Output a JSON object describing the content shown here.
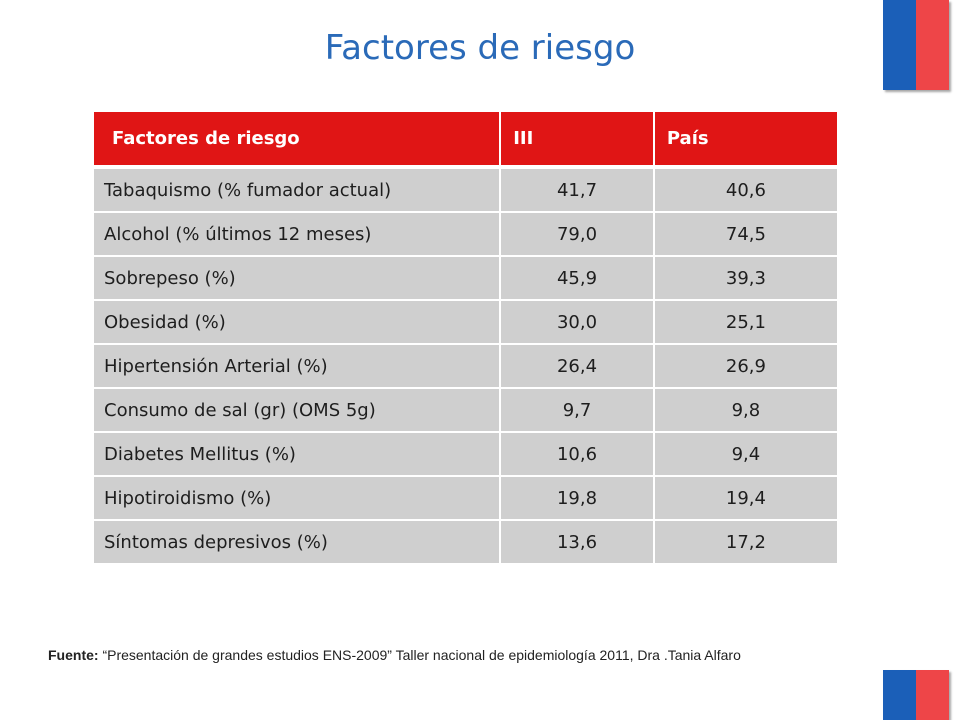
{
  "title": "Factores de riesgo",
  "table": {
    "headers": [
      "Factores de riesgo",
      "III",
      "País"
    ],
    "rows": [
      [
        "Tabaquismo (% fumador  actual)",
        "41,7",
        "40,6"
      ],
      [
        "Alcohol (% últimos 12 meses)",
        "79,0",
        "74,5"
      ],
      [
        "Sobrepeso (%)",
        "45,9",
        "39,3"
      ],
      [
        "Obesidad (%)",
        "30,0",
        "25,1"
      ],
      [
        "Hipertensión Arterial (%)",
        "26,4",
        "26,9"
      ],
      [
        "Consumo de sal (gr) (OMS 5g)",
        "9,7",
        "9,8"
      ],
      [
        "Diabetes Mellitus  (%)",
        "10,6",
        "9,4"
      ],
      [
        "Hipotiroidismo (%)",
        "19,8",
        "19,4"
      ],
      [
        "Síntomas depresivos (%)",
        "13,6",
        "17,2"
      ]
    ]
  },
  "footer": {
    "source_label": "Fuente:",
    "source_text": " “Presentación de grandes estudios ENS-2009” Taller nacional de epidemiología 2011, Dra .Tania Alfaro"
  },
  "colors": {
    "title": "#2a6ab8",
    "header_bg": "#e01515",
    "cell_bg": "#cfcfcf",
    "flag_blue": "#1b5fb8",
    "flag_red": "#ee4548"
  }
}
